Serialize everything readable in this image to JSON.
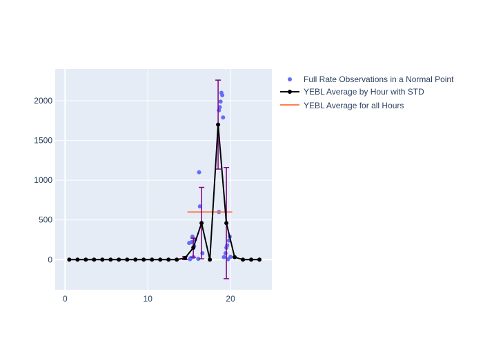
{
  "chart_data": {
    "type": "scatter",
    "title": "",
    "xlabel": "",
    "ylabel": "",
    "xlim": [
      -1.2,
      25
    ],
    "ylim": [
      -380,
      2400
    ],
    "x_ticks": [
      0,
      10,
      20
    ],
    "y_ticks": [
      0,
      500,
      1000,
      1500,
      2000
    ],
    "grid": true,
    "legend_position": "right",
    "colors": {
      "plot_bg": "#e5ecf6",
      "grid": "#ffffff",
      "observations": "#636efa",
      "hourly_line": "#000000",
      "error_bars": "#800080",
      "overall_avg": "#ff7f50"
    },
    "series": [
      {
        "name": "Full Rate Observations in a Normal Point",
        "mode": "markers",
        "points": [
          [
            15.0,
            210
          ],
          [
            15.1,
            5
          ],
          [
            15.2,
            20
          ],
          [
            15.3,
            220
          ],
          [
            15.4,
            290
          ],
          [
            15.5,
            30
          ],
          [
            15.6,
            170
          ],
          [
            15.7,
            250
          ],
          [
            16.1,
            10
          ],
          [
            16.2,
            1100
          ],
          [
            16.3,
            670
          ],
          [
            16.6,
            80
          ],
          [
            18.6,
            600
          ],
          [
            18.6,
            1880
          ],
          [
            18.7,
            1920
          ],
          [
            18.8,
            1990
          ],
          [
            18.9,
            2100
          ],
          [
            19.0,
            2070
          ],
          [
            19.1,
            1790
          ],
          [
            19.2,
            30
          ],
          [
            19.4,
            80
          ],
          [
            19.5,
            150
          ],
          [
            19.6,
            180
          ],
          [
            19.7,
            5
          ],
          [
            19.8,
            240
          ],
          [
            19.9,
            290
          ],
          [
            20.0,
            35
          ]
        ]
      },
      {
        "name": "YEBL Average by Hour with STD",
        "mode": "lines+markers",
        "x": [
          0.5,
          1.5,
          2.5,
          3.5,
          4.5,
          5.5,
          6.5,
          7.5,
          8.5,
          9.5,
          10.5,
          11.5,
          12.5,
          13.5,
          14.5,
          15.5,
          16.5,
          17.5,
          18.5,
          19.5,
          20.5,
          21.5,
          22.5,
          23.5
        ],
        "y": [
          0,
          0,
          0,
          0,
          0,
          0,
          0,
          0,
          0,
          0,
          0,
          0,
          0,
          0,
          20,
          150,
          460,
          0,
          1700,
          460,
          30,
          0,
          0,
          0
        ],
        "std": [
          0,
          0,
          0,
          0,
          0,
          0,
          0,
          0,
          0,
          0,
          0,
          0,
          0,
          0,
          20,
          120,
          450,
          0,
          560,
          700,
          0,
          0,
          0,
          0
        ]
      },
      {
        "name": "YEBL Average for all Hours",
        "mode": "lines",
        "x": [
          14.8,
          20.2
        ],
        "y": [
          600,
          600
        ]
      }
    ]
  }
}
